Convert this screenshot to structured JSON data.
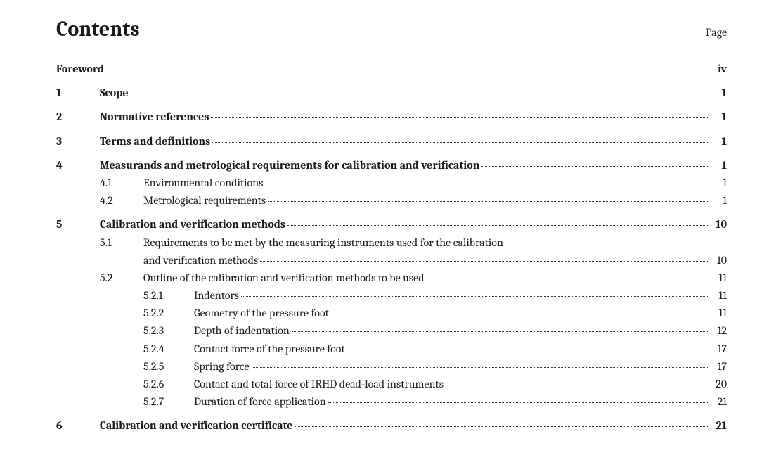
{
  "header": {
    "title": "Contents",
    "page_label": "Page"
  },
  "typography": {
    "title_fontsize_pt": 22,
    "body_fontsize_pt": 12,
    "text_color": "#1a1a1a",
    "background_color": "#ffffff",
    "leader_color": "#333333",
    "font_family": "Cambria / serif"
  },
  "entries": [
    {
      "level": 0,
      "num": "",
      "title": "Foreword",
      "page": "iv",
      "bold": true
    },
    {
      "level": 0,
      "num": "1",
      "title": "Scope",
      "page": "1",
      "bold": true
    },
    {
      "level": 0,
      "num": "2",
      "title": "Normative references",
      "page": "1",
      "bold": true
    },
    {
      "level": 0,
      "num": "3",
      "title": "Terms and definitions",
      "page": "1",
      "bold": true
    },
    {
      "level": 0,
      "num": "4",
      "title": "Measurands and metrological requirements for calibration and verification",
      "page": "1",
      "bold": true
    },
    {
      "level": 1,
      "num": "4.1",
      "title": "Environmental conditions",
      "page": "1",
      "bold": false
    },
    {
      "level": 1,
      "num": "4.2",
      "title": "Metrological requirements",
      "page": "1",
      "bold": false
    },
    {
      "level": 0,
      "num": "5",
      "title": "Calibration and verification methods",
      "page": "10",
      "bold": true
    },
    {
      "level": 1,
      "num": "5.1",
      "title_line1": "Requirements to be met by the measuring instruments used for the calibration",
      "title_line2": "and verification methods",
      "page": "10",
      "bold": false,
      "wrapped": true
    },
    {
      "level": 1,
      "num": "5.2",
      "title": "Outline of the calibration and verification methods to be used",
      "page": "11",
      "bold": false
    },
    {
      "level": 2,
      "num": "5.2.1",
      "title": "Indentors",
      "page": "11",
      "bold": false
    },
    {
      "level": 2,
      "num": "5.2.2",
      "title": "Geometry of the pressure foot",
      "page": "11",
      "bold": false
    },
    {
      "level": 2,
      "num": "5.2.3",
      "title": "Depth of indentation",
      "page": "12",
      "bold": false
    },
    {
      "level": 2,
      "num": "5.2.4",
      "title": "Contact force of the pressure foot",
      "page": "17",
      "bold": false
    },
    {
      "level": 2,
      "num": "5.2.5",
      "title": "Spring force",
      "page": "17",
      "bold": false
    },
    {
      "level": 2,
      "num": "5.2.6",
      "title": "Contact and total force of IRHD dead-load instruments",
      "page": "20",
      "bold": false
    },
    {
      "level": 2,
      "num": "5.2.7",
      "title": "Duration of force application",
      "page": "21",
      "bold": false
    },
    {
      "level": 0,
      "num": "6",
      "title": "Calibration and verification certificate",
      "page": "21",
      "bold": true
    }
  ]
}
